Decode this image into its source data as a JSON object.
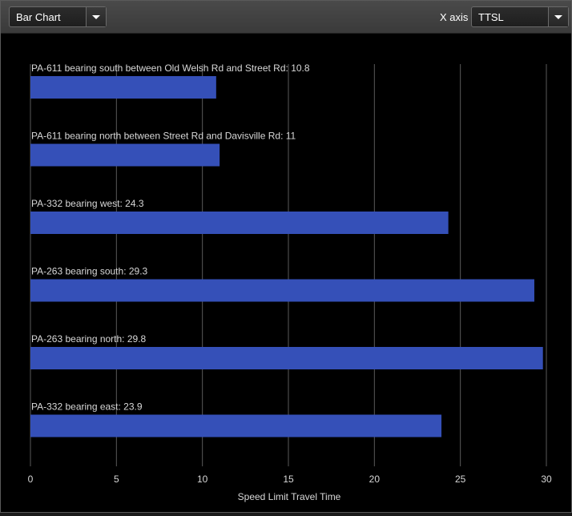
{
  "toolbar": {
    "chart_type_value": "Bar Chart",
    "xaxis_label": "X axis",
    "xaxis_value": "TTSL"
  },
  "colors": {
    "bar": "#3550b8",
    "grid": "#5a5a5a",
    "text": "#d8d8d8",
    "background": "#000000"
  },
  "chart_data": {
    "type": "bar",
    "orientation": "horizontal",
    "categories": [
      "PA-611 bearing south between Old Welsh Rd and Street Rd",
      "PA-611 bearing north between Street Rd and Davisville Rd",
      "PA-332 bearing west",
      "PA-263 bearing south",
      "PA-263 bearing north",
      "PA-332 bearing east"
    ],
    "values": [
      10.8,
      11,
      24.3,
      29.3,
      29.8,
      23.9
    ],
    "xlabel": "Speed Limit Travel Time",
    "xlim": [
      0,
      30
    ],
    "xticks": [
      0,
      5,
      10,
      15,
      20,
      25,
      30
    ],
    "grid": true
  }
}
